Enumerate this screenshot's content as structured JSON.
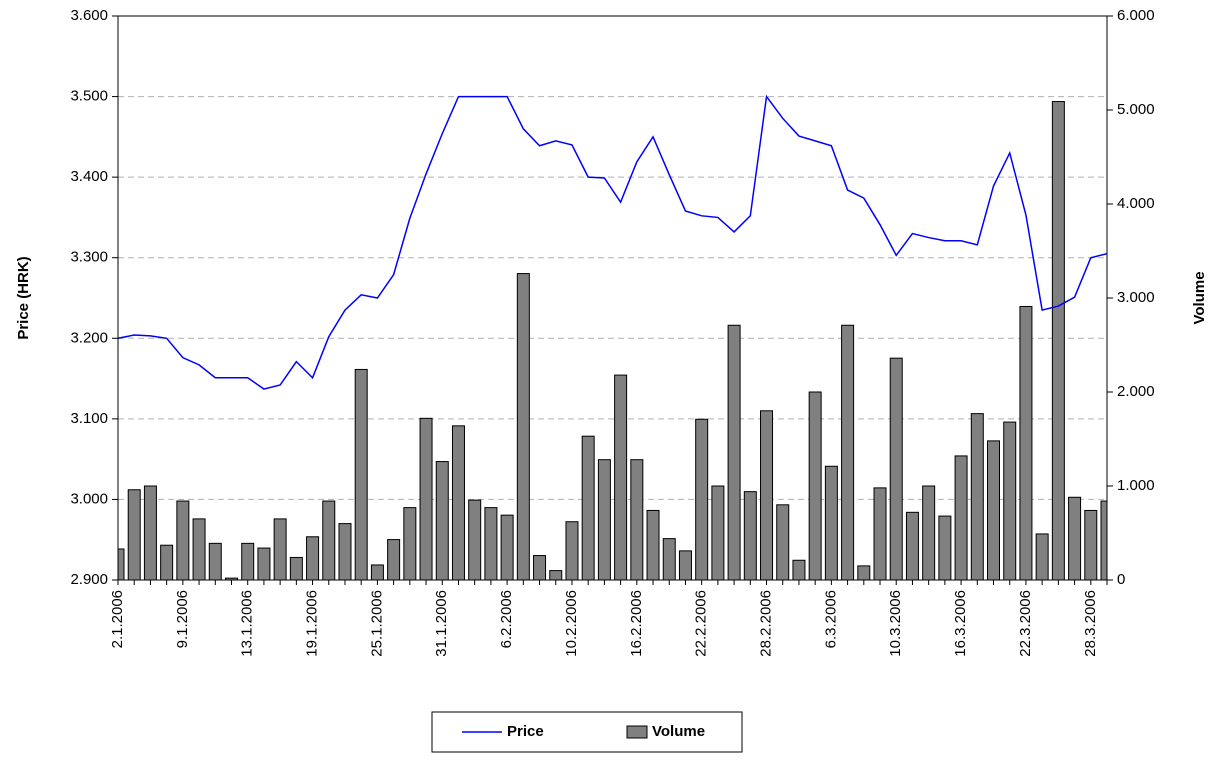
{
  "chart_data": {
    "type": "bar_line",
    "y_label": "Price (HRK)",
    "y2_label": "Volume",
    "categories": [
      "2.1.2006",
      null,
      null,
      null,
      "9.1.2006",
      null,
      null,
      null,
      "13.1.2006",
      null,
      null,
      null,
      "19.1.2006",
      null,
      null,
      null,
      "25.1.2006",
      null,
      null,
      null,
      "31.1.2006",
      null,
      null,
      null,
      "6.2.2006",
      null,
      null,
      null,
      "10.2.2006",
      null,
      null,
      null,
      "16.2.2006",
      null,
      null,
      null,
      "22.2.2006",
      null,
      null,
      null,
      "28.2.2006",
      null,
      null,
      null,
      "6.3.2006",
      null,
      null,
      null,
      "10.3.2006",
      null,
      null,
      null,
      "16.3.2006",
      null,
      null,
      null,
      "22.3.2006",
      null,
      null,
      null,
      "28.3.2006",
      null
    ],
    "series": [
      {
        "name": "Price",
        "type": "line",
        "color": "#0000ff",
        "values": [
          3.2,
          3.204,
          3.203,
          3.2,
          3.176,
          3.167,
          3.151,
          3.151,
          3.151,
          3.137,
          3.142,
          3.171,
          3.151,
          3.202,
          3.235,
          3.254,
          3.25,
          3.279,
          3.349,
          3.404,
          3.454,
          3.5,
          3.5,
          3.5,
          3.5,
          3.46,
          3.439,
          3.445,
          3.44,
          3.4,
          3.399,
          3.369,
          3.419,
          3.45,
          3.403,
          3.358,
          3.352,
          3.35,
          3.332,
          3.352,
          3.5,
          3.473,
          3.451,
          3.445,
          3.439,
          3.384,
          3.374,
          3.341,
          3.303,
          3.33,
          3.325,
          3.321,
          3.321,
          3.316,
          3.389,
          3.43,
          3.353,
          3.235,
          3.24,
          3.251,
          3.3,
          3.305
        ]
      },
      {
        "name": "Volume",
        "type": "bar",
        "axis": "y2",
        "color": "#808080",
        "values": [
          330,
          960,
          1000,
          370,
          840,
          650,
          390,
          20,
          390,
          340,
          650,
          240,
          460,
          840,
          600,
          2240,
          160,
          430,
          770,
          1720,
          1260,
          1640,
          850,
          770,
          690,
          3260,
          260,
          100,
          620,
          1530,
          1280,
          2180,
          1280,
          740,
          440,
          310,
          1710,
          1000,
          2710,
          940,
          1800,
          800,
          210,
          2000,
          1210,
          2710,
          150,
          980,
          2360,
          720,
          1000,
          680,
          1320,
          1770,
          1480,
          1680,
          2910,
          490,
          5090,
          880,
          740,
          840
        ]
      }
    ],
    "ylim": [
      2.9,
      3.6
    ],
    "yticks": [
      {
        "value": 2.9,
        "label": "2.900"
      },
      {
        "value": 3.0,
        "label": "3.000"
      },
      {
        "value": 3.1,
        "label": "3.100"
      },
      {
        "value": 3.2,
        "label": "3.200"
      },
      {
        "value": 3.3,
        "label": "3.300"
      },
      {
        "value": 3.4,
        "label": "3.400"
      },
      {
        "value": 3.5,
        "label": "3.500"
      },
      {
        "value": 3.6,
        "label": "3.600"
      }
    ],
    "y2lim": [
      0,
      6000
    ],
    "y2ticks": [
      0,
      {
        "value": 1000,
        "label": "1.000"
      },
      {
        "value": 2000,
        "label": "2.000"
      },
      {
        "value": 3000,
        "label": "3.000"
      },
      {
        "value": 4000,
        "label": "4.000"
      },
      {
        "value": 5000,
        "label": "5.000"
      },
      {
        "value": 6000,
        "label": "6.000"
      }
    ],
    "grid": true,
    "legend": "bottom"
  }
}
